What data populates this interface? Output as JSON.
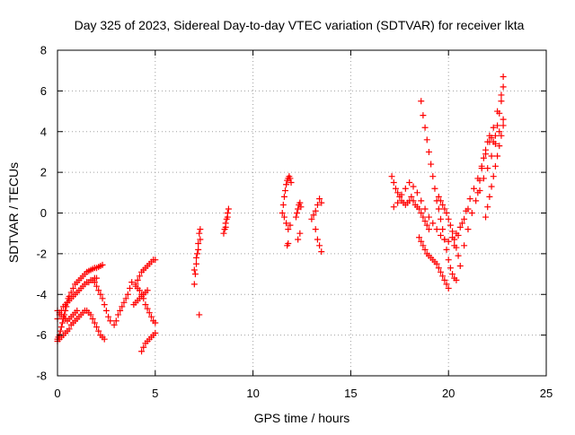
{
  "chart_data": {
    "type": "scatter",
    "title": "Day 325 of 2023, Sidereal Day-to-day VTEC variation (SDTVAR) for receiver lkta",
    "xlabel": "GPS time / hours",
    "ylabel": "SDTVAR / TECUs",
    "xlim": [
      0,
      25
    ],
    "ylim": [
      -8,
      8
    ],
    "x_ticks": [
      0,
      5,
      10,
      15,
      20,
      25
    ],
    "x_tick_labels": [
      "0",
      "5",
      "10",
      "15",
      "20",
      "25"
    ],
    "y_ticks": [
      -8,
      -6,
      -4,
      -2,
      0,
      2,
      4,
      6,
      8
    ],
    "y_tick_labels": [
      "-8",
      "-6",
      "-4",
      "-2",
      "0",
      "2",
      "4",
      "6",
      "8"
    ],
    "grid": true,
    "legend": "none",
    "marker": "plus",
    "color": "#ff0000",
    "series": [
      {
        "x": [
          0.0,
          0.05,
          0.1,
          0.15,
          0.2,
          0.25,
          0.3,
          0.35,
          0.4,
          0.45,
          0.5,
          0.55,
          0.6,
          0.7,
          0.8,
          0.9,
          1.0,
          1.1,
          1.2,
          1.3,
          1.4,
          1.5,
          1.6,
          1.7,
          1.8,
          1.9,
          2.0,
          2.1,
          2.2,
          2.3,
          0.0,
          0.1,
          0.2,
          0.3,
          0.4,
          0.5,
          0.6,
          0.7,
          0.8,
          0.9,
          1.0,
          1.1,
          1.2,
          1.3,
          1.4,
          1.5,
          1.6,
          1.7,
          1.8,
          1.9,
          2.0,
          0.0,
          0.1,
          0.2,
          0.3,
          0.4,
          0.5,
          0.6,
          0.7,
          0.8,
          0.9,
          1.0,
          1.1,
          1.2,
          1.3,
          1.4,
          1.5,
          1.6,
          1.7,
          1.8,
          1.9,
          2.0,
          2.1,
          2.2,
          2.3,
          2.4,
          0.0,
          0.1,
          0.2,
          0.3,
          0.4,
          0.5,
          0.6,
          0.7,
          0.8,
          0.9,
          1.0,
          1.9,
          2.0,
          2.1,
          2.2,
          2.3,
          2.4,
          2.5,
          2.6,
          2.7,
          2.9,
          3.0,
          3.1,
          3.2,
          3.3,
          3.4,
          3.5,
          3.6,
          3.7,
          3.8,
          4.0,
          4.1,
          4.2,
          4.3,
          4.4,
          4.5,
          4.6,
          4.7,
          4.8,
          4.9,
          5.0,
          4.0,
          4.1,
          4.2,
          4.3,
          4.4,
          4.5,
          4.6,
          4.7,
          4.8,
          4.9,
          5.0,
          3.9,
          4.0,
          4.1,
          4.2,
          4.3,
          4.4,
          4.5,
          4.6,
          4.3,
          4.4,
          4.5,
          4.6,
          4.7,
          4.8,
          4.9,
          5.0
        ],
        "y": [
          -6.2,
          -6.1,
          -6.0,
          -5.8,
          -5.6,
          -5.4,
          -5.2,
          -5.0,
          -4.8,
          -4.6,
          -4.4,
          -4.2,
          -4.1,
          -3.9,
          -3.7,
          -3.5,
          -3.4,
          -3.3,
          -3.2,
          -3.1,
          -3.0,
          -2.9,
          -2.85,
          -2.8,
          -2.75,
          -2.7,
          -2.7,
          -2.65,
          -2.6,
          -2.55,
          -5.2,
          -5.0,
          -4.8,
          -4.6,
          -4.5,
          -4.4,
          -4.3,
          -4.2,
          -4.1,
          -4.0,
          -3.9,
          -3.8,
          -3.7,
          -3.6,
          -3.5,
          -3.4,
          -3.4,
          -3.3,
          -3.3,
          -3.2,
          -3.2,
          -6.3,
          -6.2,
          -6.1,
          -6.0,
          -5.9,
          -5.8,
          -5.7,
          -5.5,
          -5.4,
          -5.3,
          -5.2,
          -5.1,
          -5.0,
          -4.9,
          -4.8,
          -4.8,
          -4.9,
          -5.0,
          -5.2,
          -5.4,
          -5.6,
          -5.8,
          -6.0,
          -6.1,
          -6.2,
          -4.8,
          -4.9,
          -5.0,
          -5.1,
          -5.2,
          -5.3,
          -5.2,
          -5.1,
          -5.0,
          -4.9,
          -4.8,
          -3.4,
          -3.6,
          -3.8,
          -4.0,
          -4.2,
          -4.5,
          -4.8,
          -5.1,
          -5.3,
          -5.5,
          -5.3,
          -5.0,
          -4.8,
          -4.6,
          -4.4,
          -4.2,
          -4.0,
          -3.7,
          -3.4,
          -3.5,
          -3.3,
          -3.1,
          -2.9,
          -2.8,
          -2.7,
          -2.6,
          -2.5,
          -2.4,
          -2.3,
          -2.3,
          -3.6,
          -3.7,
          -3.8,
          -4.0,
          -4.2,
          -4.5,
          -4.7,
          -4.9,
          -5.1,
          -5.3,
          -5.4,
          -4.5,
          -4.4,
          -4.3,
          -4.2,
          -4.1,
          -4.0,
          -3.9,
          -3.8,
          -6.8,
          -6.6,
          -6.4,
          -6.3,
          -6.2,
          -6.1,
          -6.0,
          -5.9
        ]
      },
      {
        "x": [
          7.0,
          7.05,
          7.1,
          7.15,
          7.2,
          7.25,
          7.3,
          7.0,
          7.1,
          7.2,
          7.3,
          7.25,
          8.5,
          8.55,
          8.6,
          8.65,
          8.7,
          8.75,
          8.6,
          8.7,
          11.5,
          11.55,
          11.6,
          11.65,
          11.7,
          11.75,
          11.8,
          11.85,
          11.9,
          11.95,
          11.6,
          11.7,
          11.8,
          11.9,
          11.75,
          11.8,
          12.2,
          12.25,
          12.3,
          12.35,
          12.4,
          12.45,
          12.4,
          12.3,
          13.0,
          13.1,
          13.2,
          13.3,
          13.4,
          13.5,
          13.3,
          13.4,
          13.2,
          13.5
        ],
        "y": [
          -3.5,
          -3.0,
          -2.5,
          -2.0,
          -1.5,
          -1.0,
          -0.8,
          -2.8,
          -2.2,
          -1.8,
          -1.3,
          -5.0,
          -1.0,
          -0.8,
          -0.5,
          -0.3,
          0.0,
          0.2,
          -0.7,
          -0.2,
          0.0,
          0.4,
          0.8,
          1.1,
          1.4,
          1.6,
          1.7,
          1.8,
          1.7,
          1.5,
          -0.2,
          -0.5,
          -0.8,
          -0.6,
          -1.6,
          -1.5,
          -0.2,
          0.0,
          0.2,
          0.4,
          0.5,
          0.3,
          -1.0,
          -1.3,
          -0.3,
          -0.1,
          0.1,
          0.4,
          0.7,
          0.5,
          -1.3,
          -1.6,
          -0.8,
          -1.9
        ]
      },
      {
        "x": [
          17.1,
          17.2,
          17.3,
          17.4,
          17.5,
          17.6,
          17.7,
          17.8,
          17.9,
          18.0,
          18.1,
          18.2,
          18.3,
          18.4,
          18.5,
          18.6,
          18.7,
          18.8,
          18.9,
          19.0,
          17.2,
          17.4,
          17.6,
          17.8,
          18.0,
          18.2,
          18.4,
          18.6,
          18.8,
          19.0,
          19.2,
          19.4,
          19.6,
          19.8,
          20.0,
          20.2,
          20.4,
          20.6,
          20.8,
          21.0,
          18.6,
          18.7,
          18.8,
          18.9,
          19.0,
          19.1,
          19.2,
          19.3,
          19.4,
          19.5,
          19.6,
          19.7,
          19.8,
          19.9,
          20.0,
          20.1,
          20.2,
          20.3,
          20.4,
          18.5,
          18.6,
          18.7,
          18.8,
          18.9,
          19.0,
          19.1,
          19.2,
          19.3,
          19.4,
          19.5,
          19.6,
          19.7,
          19.8,
          19.9,
          20.0,
          19.5,
          19.6,
          19.7,
          19.8,
          19.9,
          20.0,
          20.1,
          20.2,
          20.3,
          20.4,
          20.5,
          20.3,
          20.5,
          20.7,
          20.9,
          21.1,
          21.3,
          21.5,
          21.7,
          21.9,
          22.1,
          22.3,
          22.5,
          22.7,
          22.8,
          20.6,
          20.8,
          21.0,
          21.2,
          21.4,
          21.6,
          21.8,
          22.0,
          22.2,
          22.4,
          22.6,
          22.8,
          21.5,
          21.6,
          21.7,
          21.8,
          21.9,
          22.0,
          22.1,
          22.2,
          22.3,
          22.4,
          22.5,
          22.6,
          22.7,
          22.8,
          21.9,
          22.0,
          22.1,
          22.2,
          22.3,
          22.4,
          22.5,
          22.6,
          22.7,
          22.8
        ],
        "y": [
          1.8,
          1.5,
          1.2,
          1.0,
          0.8,
          0.6,
          0.5,
          0.4,
          0.5,
          0.6,
          0.8,
          0.6,
          0.4,
          0.3,
          0.2,
          0.0,
          -0.2,
          -0.4,
          -0.6,
          -0.8,
          0.3,
          0.5,
          0.9,
          1.2,
          1.5,
          1.3,
          1.0,
          0.6,
          0.2,
          -0.2,
          -0.5,
          -0.8,
          -1.1,
          -1.3,
          -1.4,
          -1.2,
          -1.0,
          -0.7,
          -0.3,
          0.2,
          5.5,
          4.8,
          4.2,
          3.6,
          3.0,
          2.4,
          1.8,
          1.2,
          0.6,
          0.2,
          -0.3,
          -0.8,
          -1.3,
          -1.8,
          -2.3,
          -2.7,
          -3.0,
          -3.2,
          -3.3,
          -1.2,
          -1.4,
          -1.6,
          -1.8,
          -2.0,
          -2.1,
          -2.2,
          -2.3,
          -2.4,
          -2.5,
          -2.7,
          -2.9,
          -3.1,
          -3.3,
          -3.5,
          -3.7,
          0.8,
          0.6,
          0.4,
          0.2,
          0.0,
          -0.3,
          -0.6,
          -0.9,
          -1.3,
          -1.7,
          -2.1,
          -1.6,
          -1.1,
          -0.5,
          0.1,
          0.7,
          1.2,
          1.7,
          2.3,
          2.9,
          3.5,
          4.2,
          5.0,
          5.8,
          6.7,
          -2.6,
          -1.6,
          -0.8,
          0.0,
          0.6,
          1.1,
          1.7,
          2.2,
          2.8,
          3.4,
          4.0,
          4.6,
          1.0,
          1.6,
          2.2,
          2.7,
          3.1,
          3.5,
          3.8,
          3.7,
          3.5,
          3.8,
          4.3,
          4.9,
          5.5,
          6.2,
          -0.2,
          0.3,
          0.8,
          1.3,
          1.8,
          2.3,
          2.8,
          3.3,
          3.8,
          4.3
        ]
      }
    ]
  }
}
